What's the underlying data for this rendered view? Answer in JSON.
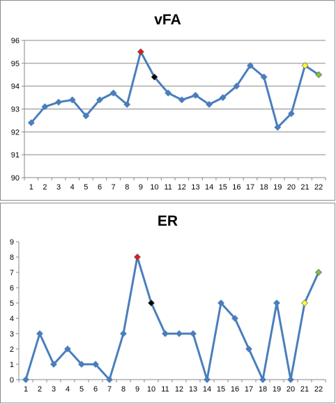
{
  "chart_data": [
    {
      "type": "line",
      "title": "vFA",
      "xlabel": "",
      "ylabel": "",
      "x": [
        1,
        2,
        3,
        4,
        5,
        6,
        7,
        8,
        9,
        10,
        11,
        12,
        13,
        14,
        15,
        16,
        17,
        18,
        19,
        20,
        21,
        22
      ],
      "values": [
        92.4,
        93.1,
        93.3,
        93.4,
        92.7,
        93.4,
        93.7,
        93.2,
        95.5,
        94.4,
        93.7,
        93.4,
        93.6,
        93.2,
        93.5,
        94.0,
        94.9,
        94.4,
        92.2,
        92.8,
        94.9,
        94.5
      ],
      "ylim": [
        90,
        96
      ],
      "yticks": [
        90,
        91,
        92,
        93,
        94,
        95,
        96
      ],
      "grid": true,
      "line_color": "#4a7ebb",
      "highlight_points": [
        {
          "x": 9,
          "color": "#e31a1c"
        },
        {
          "x": 10,
          "color": "#000000"
        },
        {
          "x": 21,
          "color": "#ffff33"
        },
        {
          "x": 22,
          "color": "#7fc241"
        }
      ]
    },
    {
      "type": "line",
      "title": "ER",
      "xlabel": "",
      "ylabel": "",
      "x": [
        1,
        2,
        3,
        4,
        5,
        6,
        7,
        8,
        9,
        10,
        11,
        12,
        13,
        14,
        15,
        16,
        17,
        18,
        19,
        20,
        21,
        22
      ],
      "values": [
        0,
        3,
        1,
        2,
        1,
        1,
        0,
        3,
        8,
        5,
        3,
        3,
        3,
        0,
        5,
        4,
        2,
        0,
        5,
        0,
        5,
        7
      ],
      "ylim": [
        0,
        9
      ],
      "yticks": [
        0,
        1,
        2,
        3,
        4,
        5,
        6,
        7,
        8,
        9
      ],
      "grid": false,
      "line_color": "#4a7ebb",
      "highlight_points": [
        {
          "x": 9,
          "color": "#e31a1c"
        },
        {
          "x": 10,
          "color": "#000000"
        },
        {
          "x": 21,
          "color": "#ffff33"
        },
        {
          "x": 22,
          "color": "#7fc241"
        }
      ]
    }
  ]
}
